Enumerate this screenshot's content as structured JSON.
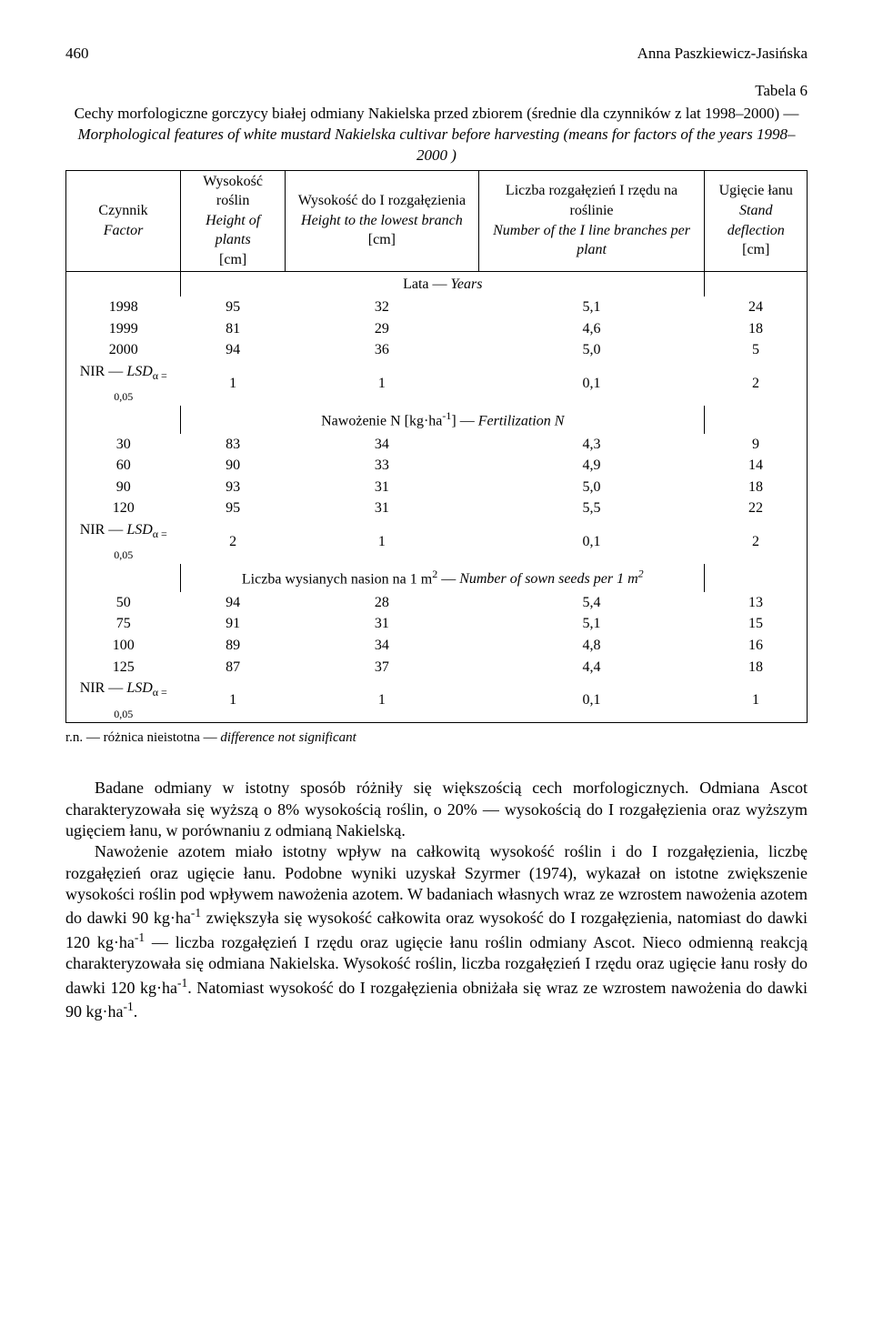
{
  "header": {
    "page_number": "460",
    "author": "Anna Paszkiewicz-Jasińska"
  },
  "table": {
    "caption_label": "Tabela 6",
    "title_pl": "Cechy morfologiczne gorczycy białej odmiany Nakielska przed zbiorem (średnie dla czynników z lat 1998–2000) — ",
    "title_en": "Morphological features of white mustard Nakielska cultivar before harvesting (means for factors of the years 1998–2000 )",
    "columns": {
      "c1_pl": "Czynnik",
      "c1_en": "Factor",
      "c2_pl": "Wysokość roślin",
      "c2_en": "Height of plants",
      "c2_unit": "[cm]",
      "c3_pl": "Wysokość do I rozgałęzienia",
      "c3_en": "Height to the lowest branch",
      "c3_unit": "[cm]",
      "c4_pl": "Liczba rozgałęzień I rzędu na roślinie",
      "c4_en": "Number of the I line branches per plant",
      "c5_pl": "Ugięcie łanu",
      "c5_en": "Stand deflection",
      "c5_unit": "[cm]"
    },
    "sections": {
      "years": {
        "pl": "Lata — ",
        "en": "Years"
      },
      "fert": {
        "prefix": "Nawożenie N [kg·ha",
        "sup": "-1",
        "suffix": "] — ",
        "en": "Fertilization N"
      },
      "seeds": {
        "prefix": "Liczba wysianych nasion na 1 m",
        "sup1": "2",
        "mid": " — ",
        "en": "Number of sown seeds per 1 m",
        "sup2": "2"
      }
    },
    "years_rows": [
      {
        "label": "1998",
        "v": [
          "95",
          "32",
          "5,1",
          "24"
        ]
      },
      {
        "label": "1999",
        "v": [
          "81",
          "29",
          "4,6",
          "18"
        ]
      },
      {
        "label": "2000",
        "v": [
          "94",
          "36",
          "5,0",
          "5"
        ]
      }
    ],
    "years_nir": {
      "label_prefix": "NIR — ",
      "label_en": "LSD",
      "label_sub": "α = 0,05",
      "v": [
        "1",
        "1",
        "0,1",
        "2"
      ]
    },
    "fert_rows": [
      {
        "label": "30",
        "v": [
          "83",
          "34",
          "4,3",
          "9"
        ]
      },
      {
        "label": "60",
        "v": [
          "90",
          "33",
          "4,9",
          "14"
        ]
      },
      {
        "label": "90",
        "v": [
          "93",
          "31",
          "5,0",
          "18"
        ]
      },
      {
        "label": "120",
        "v": [
          "95",
          "31",
          "5,5",
          "22"
        ]
      }
    ],
    "fert_nir": {
      "label_prefix": "NIR — ",
      "label_en": "LSD",
      "label_sub": "α = 0,05",
      "v": [
        "2",
        "1",
        "0,1",
        "2"
      ]
    },
    "seeds_rows": [
      {
        "label": "50",
        "v": [
          "94",
          "28",
          "5,4",
          "13"
        ]
      },
      {
        "label": "75",
        "v": [
          "91",
          "31",
          "5,1",
          "15"
        ]
      },
      {
        "label": "100",
        "v": [
          "89",
          "34",
          "4,8",
          "16"
        ]
      },
      {
        "label": "125",
        "v": [
          "87",
          "37",
          "4,4",
          "18"
        ]
      }
    ],
    "seeds_nir": {
      "label_prefix": "NIR — ",
      "label_en": "LSD",
      "label_sub": "α = 0,05",
      "v": [
        "1",
        "1",
        "0,1",
        "1"
      ]
    },
    "footnote_pl": "r.n. — różnica nieistotna — ",
    "footnote_en": "difference not significant"
  },
  "body": {
    "p1": "Badane odmiany w istotny sposób różniły się większością cech morfologicznych. Odmiana Ascot charakteryzowała się wyższą o 8% wysokością roślin, o 20% — wysokością do I rozgałęzienia oraz wyższym ugięciem łanu, w porównaniu z odmianą Nakielską.",
    "p2_a": "Nawożenie azotem miało istotny wpływ na całkowitą wysokość roślin i do I rozgałęzienia, liczbę rozgałęzień oraz ugięcie łanu. Podobne wyniki uzyskał Szyrmer (1974), wykazał on istotne zwiększenie wysokości roślin pod wpływem nawożenia azotem. W badaniach własnych wraz ze wzrostem nawożenia azotem do dawki 90 kg·ha",
    "p2_s1": "-1",
    "p2_b": " zwiększyła się wysokość całkowita oraz wysokość do I rozgałęzienia, natomiast do dawki 120 kg·ha",
    "p2_s2": "-1",
    "p2_c": " — liczba rozgałęzień I rzędu oraz ugięcie łanu roślin odmiany Ascot. Nieco odmienną reakcją charakteryzowała się odmiana Nakielska. Wysokość roślin, liczba rozgałęzień I rzędu oraz ugięcie łanu rosły do dawki 120 kg·ha",
    "p2_s3": "-1",
    "p2_d": ". Natomiast wysokość do I rozgałęzienia obniżała się wraz ze wzrostem nawożenia do dawki 90 kg·ha",
    "p2_s4": "-1",
    "p2_e": "."
  }
}
